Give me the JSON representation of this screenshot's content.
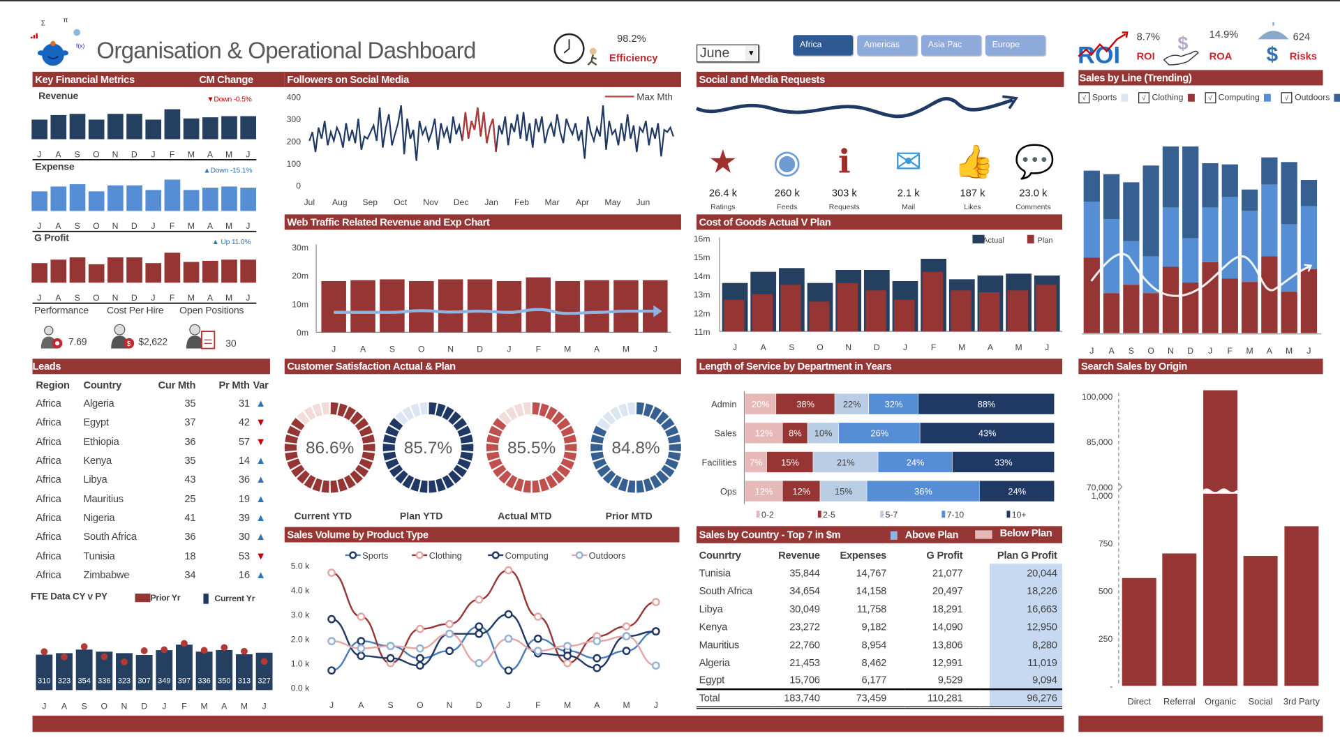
{
  "header": {
    "title": "Organisation & Operational Dashboard",
    "efficiency": {
      "value": "98.2%",
      "label": "Efficiency"
    },
    "month_select": "June",
    "regions": [
      {
        "label": "Africa",
        "active": true
      },
      {
        "label": "Americas",
        "active": false
      },
      {
        "label": "Asia Pac",
        "active": false
      },
      {
        "label": "Europe",
        "active": false
      }
    ],
    "kpis": [
      {
        "value": "8.7%",
        "label": "ROI",
        "icon": "roi-icon"
      },
      {
        "value": "14.9%",
        "label": "ROA",
        "icon": "dollar-hand-icon"
      },
      {
        "value": "624",
        "label": "Risks",
        "icon": "umbrella-dollar-icon"
      }
    ]
  },
  "colors": {
    "brand_red": "#963634",
    "navy": "#1f3864",
    "blue": "#558ed5",
    "light_blue": "#b9cde5",
    "pink": "#e6b9b8",
    "up": "#2e75b6",
    "down": "#c00000"
  },
  "months": [
    "J",
    "A",
    "S",
    "O",
    "N",
    "D",
    "J",
    "F",
    "M",
    "A",
    "M",
    "J"
  ],
  "key_financial": {
    "title": "Key Financial Metrics",
    "cm_change": "CM Change",
    "metrics": [
      {
        "label": "Revenue",
        "change": "▼Down -0.5%",
        "direction": "down",
        "color": "#243f60",
        "values": [
          85,
          105,
          110,
          85,
          110,
          110,
          85,
          130,
          90,
          95,
          100,
          100
        ]
      },
      {
        "label": "Expense",
        "change": "▲Down -15.1%",
        "direction": "up",
        "color": "#558ed5",
        "values": [
          85,
          106,
          116,
          85,
          111,
          111,
          91,
          136,
          91,
          101,
          106,
          101
        ]
      },
      {
        "label": "G Profit",
        "change": "▲ Up 11.0%",
        "direction": "up",
        "color": "#963634",
        "values": [
          85,
          100,
          110,
          80,
          110,
          110,
          85,
          130,
          90,
          95,
          100,
          100
        ]
      }
    ],
    "hr": [
      {
        "label": "Performance",
        "value": "7.69",
        "icon": "performance-person-icon"
      },
      {
        "label": "Cost Per Hire",
        "value": "$2,622",
        "icon": "cost-person-icon"
      },
      {
        "label": "Open Positions",
        "value": "30",
        "icon": "cv-person-icon"
      }
    ]
  },
  "followers": {
    "title": "Followers on Social Media",
    "legend": "Max Mth",
    "max_month": "Dec",
    "y_ticks": [
      0,
      100,
      200,
      300,
      400
    ],
    "x_labels": [
      "Jul",
      "Aug",
      "Sep",
      "Oct",
      "Nov",
      "Dec",
      "Jan",
      "Feb",
      "Mar",
      "Apr",
      "May",
      "Jun"
    ],
    "values": [
      200,
      240,
      150,
      260,
      210,
      290,
      180,
      240,
      200,
      260,
      230,
      170,
      280,
      200,
      250,
      190,
      300,
      160,
      220,
      210,
      240,
      270,
      200,
      350,
      170,
      260,
      320,
      180,
      230,
      280,
      360,
      140,
      300,
      210,
      250,
      110,
      290,
      230,
      260,
      200,
      240,
      300,
      160,
      280,
      220,
      260,
      190,
      310,
      230,
      270,
      200,
      330,
      210,
      290,
      250,
      350,
      220,
      330,
      190,
      260,
      300,
      150,
      270,
      230,
      310,
      180,
      280,
      240,
      320,
      210,
      330,
      200,
      280,
      170,
      300,
      240,
      310,
      190,
      250,
      280,
      220,
      320,
      240,
      190,
      300,
      260,
      230,
      280,
      200,
      250,
      120,
      310,
      240,
      200,
      260,
      220,
      360,
      160,
      290,
      230,
      250,
      180,
      280,
      200,
      320,
      210,
      270,
      150,
      260,
      240,
      290,
      180,
      260,
      210,
      280,
      130,
      250,
      240,
      260,
      220
    ]
  },
  "web_traffic": {
    "title": "Web Traffic Related Revenue and Exp Chart",
    "y_ticks": [
      "0m",
      "10m",
      "20m",
      "30m"
    ],
    "revenue_m": [
      18,
      18.3,
      18.6,
      18,
      18.6,
      18.6,
      18,
      19.3,
      18,
      18.3,
      18.3,
      18.3
    ],
    "trend_m": [
      7,
      7,
      7,
      7.6,
      7.1,
      7.4,
      7,
      8,
      6.6,
      7,
      7.4,
      7.4
    ]
  },
  "leads": {
    "title": "Leads",
    "columns": [
      "Region",
      "Country",
      "Cur Mth",
      "Pr Mth",
      "Var"
    ],
    "rows": [
      [
        "Africa",
        "Algeria",
        35,
        31,
        "up"
      ],
      [
        "Africa",
        "Egypt",
        37,
        42,
        "down"
      ],
      [
        "Africa",
        "Ethiopia",
        36,
        57,
        "down"
      ],
      [
        "Africa",
        "Kenya",
        35,
        14,
        "up"
      ],
      [
        "Africa",
        "Libya",
        43,
        36,
        "up"
      ],
      [
        "Africa",
        "Mauritius",
        25,
        19,
        "up"
      ],
      [
        "Africa",
        "Nigeria",
        41,
        39,
        "up"
      ],
      [
        "Africa",
        "South Africa",
        36,
        30,
        "up"
      ],
      [
        "Africa",
        "Tunisia",
        18,
        53,
        "down"
      ],
      [
        "Africa",
        "Zimbabwe",
        34,
        16,
        "up"
      ]
    ]
  },
  "fte": {
    "title": "FTE Data CY v PY",
    "legend_prior": "Prior Yr",
    "legend_current": "Current Yr",
    "current": [
      310,
      323,
      354,
      336,
      323,
      307,
      349,
      397,
      336,
      350,
      313,
      327
    ],
    "prior": [
      336,
      290,
      380,
      292,
      246,
      344,
      353,
      408,
      347,
      372,
      339,
      250
    ]
  },
  "satisfaction": {
    "title": "Customer Satisfaction Actual & Plan",
    "gauges": [
      {
        "label": "Current YTD",
        "value": 86.6,
        "text": "86.6%",
        "color": "#963634",
        "track": "#f2dcdb"
      },
      {
        "label": "Plan YTD",
        "value": 85.7,
        "text": "85.7%",
        "color": "#1f3864",
        "track": "#dce6f2"
      },
      {
        "label": "Actual MTD",
        "value": 85.5,
        "text": "85.5%",
        "color": "#c0504d",
        "track": "#f2dcdb"
      },
      {
        "label": "Prior MTD",
        "value": 84.8,
        "text": "84.8%",
        "color": "#366092",
        "track": "#dce6f2"
      }
    ]
  },
  "sales_volume": {
    "title": "Sales Volume by Product Type",
    "y_ticks": [
      "0.0 k",
      "1.0 k",
      "2.0 k",
      "3.0 k",
      "4.0 k",
      "5.0 k"
    ],
    "series": [
      {
        "name": "Sports",
        "line": "#4a7ebb",
        "marker": "#1f3864",
        "values": [
          0.7,
          1.9,
          1.7,
          1.2,
          1.5,
          2.5,
          0.7,
          2.0,
          1.5,
          1.2,
          1.5,
          2.3
        ]
      },
      {
        "name": "Clothing",
        "line": "#953735",
        "marker": "#e6a5a5",
        "values": [
          4.7,
          2.9,
          1.0,
          2.4,
          2.6,
          3.6,
          4.8,
          2.9,
          1.0,
          2.1,
          2.5,
          3.5
        ]
      },
      {
        "name": "Computing",
        "line": "#1f3864",
        "marker": "#1f3864",
        "values": [
          2.8,
          1.3,
          1.2,
          0.9,
          2.2,
          2.2,
          3.0,
          1.4,
          1.3,
          0.8,
          2.1,
          2.3
        ]
      },
      {
        "name": "Outdoors",
        "line": "#e6a5a5",
        "marker": "#95b3d7",
        "values": [
          1.9,
          1.6,
          1.7,
          1.6,
          2.2,
          1.0,
          2.0,
          1.5,
          1.7,
          1.9,
          2.1,
          0.9
        ]
      }
    ]
  },
  "social": {
    "title": "Social and Media Requests",
    "items": [
      {
        "value": "26.4 k",
        "label": "Ratings",
        "icon": "star-icon"
      },
      {
        "value": "260 k",
        "label": "Feeds",
        "icon": "rss-feed-icon"
      },
      {
        "value": "303 k",
        "label": "Requests",
        "icon": "info-document-icon"
      },
      {
        "value": "2.1 k",
        "label": "Mail",
        "icon": "mail-icon"
      },
      {
        "value": "187 k",
        "label": "Likes",
        "icon": "like-us-icon"
      },
      {
        "value": "23.0 k",
        "label": "Comments",
        "icon": "speech-bubble-icon"
      }
    ]
  },
  "cogs": {
    "title": "Cost of Goods Actual V Plan",
    "legend": [
      "Actual",
      "Plan"
    ],
    "y_ticks": [
      "11m",
      "12m",
      "13m",
      "14m",
      "15m",
      "16m"
    ],
    "actual_m": [
      13.6,
      14.2,
      14.4,
      13.6,
      14.3,
      14.3,
      13.7,
      14.9,
      13.8,
      14.0,
      14.1,
      14.0
    ],
    "plan_m": [
      12.7,
      13.0,
      13.5,
      12.6,
      13.6,
      13.2,
      12.7,
      14.2,
      13.2,
      13.1,
      13.2,
      13.5
    ]
  },
  "service": {
    "title": "Length of Service by Department in Years",
    "bands": [
      {
        "name": "0-2",
        "color": "#e6b9b8",
        "text": "#ffffff"
      },
      {
        "name": "2-5",
        "color": "#963634",
        "text": "#ffffff"
      },
      {
        "name": "5-7",
        "color": "#b9cde5",
        "text": "#404040"
      },
      {
        "name": "7-10",
        "color": "#558ed5",
        "text": "#ffffff"
      },
      {
        "name": "10+",
        "color": "#1f3864",
        "text": "#ffffff"
      }
    ],
    "rows": [
      {
        "dept": "Admin",
        "values": [
          20,
          38,
          22,
          32,
          88
        ]
      },
      {
        "dept": "Sales",
        "values": [
          12,
          8,
          10,
          26,
          43
        ]
      },
      {
        "dept": "Facilities",
        "values": [
          7,
          15,
          21,
          24,
          33
        ]
      },
      {
        "dept": "Ops",
        "values": [
          12,
          12,
          15,
          36,
          24
        ]
      }
    ]
  },
  "country_sales": {
    "title": "Sales by Country - Top 7 in $m",
    "legend_above": "Above Plan",
    "legend_below": "Below Plan",
    "columns": [
      "Counrtry",
      "Revenue",
      "Expenses",
      "G Profit",
      "Plan G Profit"
    ],
    "rows": [
      [
        "Tunisia",
        "35,844",
        "14,767",
        "21,077",
        "20,044"
      ],
      [
        "South Africa",
        "34,654",
        "14,158",
        "20,497",
        "18,226"
      ],
      [
        "Libya",
        "30,049",
        "11,758",
        "18,291",
        "16,663"
      ],
      [
        "Kenya",
        "23,272",
        "9,182",
        "14,090",
        "12,950"
      ],
      [
        "Mauritius",
        "22,760",
        "8,954",
        "13,806",
        "8,280"
      ],
      [
        "Algeria",
        "21,453",
        "8,462",
        "12,991",
        "11,019"
      ],
      [
        "Egypt",
        "15,706",
        "6,177",
        "9,529",
        "9,094"
      ]
    ],
    "total": [
      "Total",
      "183,740",
      "73,459",
      "110,281",
      "96,276"
    ]
  },
  "sales_line": {
    "title": "Sales by  Line (Trending)",
    "series": [
      {
        "name": "Sports",
        "color": "#dce6f2",
        "checked": true,
        "values": [
          0,
          0,
          0,
          0,
          0,
          0,
          0,
          0,
          0,
          0,
          0,
          0
        ]
      },
      {
        "name": "Clothing",
        "color": "#963634",
        "checked": true,
        "values": [
          325,
          172,
          208,
          172,
          285,
          218,
          305,
          235,
          220,
          330,
          178,
          275
        ]
      },
      {
        "name": "Computing",
        "color": "#558ed5",
        "checked": true,
        "values": [
          240,
          318,
          187,
          158,
          255,
          190,
          235,
          350,
          305,
          308,
          290,
          270
        ]
      },
      {
        "name": "Outdoors",
        "color": "#366092",
        "checked": true,
        "values": [
          133,
          193,
          253,
          390,
          262,
          394,
          190,
          140,
          92,
          117,
          267,
          113
        ]
      }
    ]
  },
  "search_sales": {
    "title": "Search Sales by Origin",
    "categories": [
      "Direct",
      "Referral",
      "Organic",
      "Social",
      "3rd Party"
    ],
    "values": [
      566,
      695,
      102000,
      682,
      838
    ],
    "y_ticks_lower": [
      "-",
      "250",
      "500",
      "750",
      "1,000"
    ],
    "y_ticks_upper": [
      "70,000",
      "85,000",
      "100,000"
    ]
  }
}
